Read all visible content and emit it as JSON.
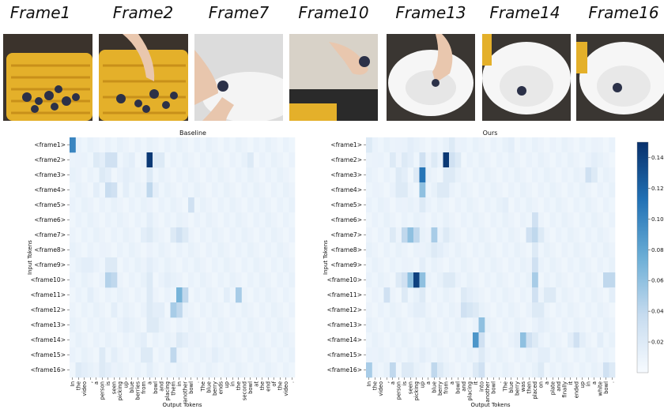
{
  "frames": [
    {
      "label": "Frame1"
    },
    {
      "label": "Frame2"
    },
    {
      "label": "Frame7"
    },
    {
      "label": "Frame10"
    },
    {
      "label": "Frame13"
    },
    {
      "label": "Frame14"
    },
    {
      "label": "Frame16"
    }
  ],
  "chart_data": [
    {
      "type": "heatmap",
      "title": "Baseline",
      "xlabel": "Output Tokens",
      "ylabel": "Input Tokens",
      "rows": [
        "<frame1>",
        "<frame2>",
        "<frame3>",
        "<frame4>",
        "<frame5>",
        "<frame6>",
        "<frame7>",
        "<frame8>",
        "<frame9>",
        "<frame10>",
        "<frame11>",
        "<frame12>",
        "<frame13>",
        "<frame14>",
        "<frame15>",
        "<frame16>"
      ],
      "cols": [
        "In",
        "the",
        "video",
        ",",
        "a",
        "person",
        "is",
        "seen",
        "picking",
        "up",
        "blue",
        "berries",
        "from",
        "a",
        "bowl",
        "and",
        "placing",
        "them",
        "in",
        "another",
        "bowl",
        ".",
        "The",
        "blue",
        "berry",
        "ends",
        "up",
        "in",
        "the",
        "second",
        "bowl",
        "at",
        "the",
        "end",
        "of",
        "the",
        "video",
        "."
      ],
      "cells": [
        [
          0,
          0,
          0.1
        ],
        [
          1,
          1,
          0.01
        ],
        [
          5,
          1,
          0.015
        ],
        [
          7,
          1,
          0.02
        ],
        [
          13,
          1,
          0.04
        ],
        [
          14,
          1,
          0.03
        ],
        [
          15,
          1,
          0.02
        ],
        [
          4,
          1,
          0.02
        ],
        [
          6,
          1,
          0.03
        ],
        [
          7,
          1,
          0.03
        ],
        [
          10,
          1,
          0.015
        ],
        [
          13,
          1,
          0.145
        ],
        [
          14,
          1,
          0.02
        ],
        [
          30,
          1,
          0.02
        ],
        [
          1,
          2,
          0.01
        ],
        [
          5,
          2,
          0.02
        ],
        [
          6,
          2,
          0.015
        ],
        [
          9,
          2,
          0.015
        ],
        [
          13,
          2,
          0.02
        ],
        [
          4,
          3,
          0.015
        ],
        [
          6,
          3,
          0.035
        ],
        [
          7,
          3,
          0.03
        ],
        [
          9,
          3,
          0.015
        ],
        [
          13,
          3,
          0.04
        ],
        [
          14,
          3,
          0.015
        ],
        [
          3,
          4,
          0.01
        ],
        [
          20,
          4,
          0.03
        ],
        [
          13,
          4,
          0.01
        ],
        [
          13,
          5,
          0.015
        ],
        [
          19,
          5,
          0.01
        ],
        [
          12,
          6,
          0.015
        ],
        [
          13,
          6,
          0.02
        ],
        [
          17,
          6,
          0.02
        ],
        [
          18,
          6,
          0.03
        ],
        [
          19,
          6,
          0.02
        ],
        [
          5,
          7,
          0.01
        ],
        [
          13,
          7,
          0.01
        ],
        [
          2,
          8,
          0.015
        ],
        [
          3,
          8,
          0.015
        ],
        [
          6,
          8,
          0.02
        ],
        [
          7,
          8,
          0.02
        ],
        [
          13,
          8,
          0.015
        ],
        [
          6,
          9,
          0.045
        ],
        [
          7,
          9,
          0.04
        ],
        [
          13,
          9,
          0.02
        ],
        [
          16,
          9,
          0.015
        ],
        [
          18,
          9,
          0.01
        ],
        [
          3,
          10,
          0.015
        ],
        [
          13,
          10,
          0.02
        ],
        [
          18,
          10,
          0.07
        ],
        [
          19,
          10,
          0.04
        ],
        [
          26,
          10,
          0.015
        ],
        [
          28,
          10,
          0.05
        ],
        [
          7,
          11,
          0.015
        ],
        [
          13,
          11,
          0.02
        ],
        [
          14,
          11,
          0.015
        ],
        [
          15,
          11,
          0.015
        ],
        [
          18,
          11,
          0.04
        ],
        [
          17,
          11,
          0.05
        ],
        [
          13,
          12,
          0.02
        ],
        [
          14,
          12,
          0.02
        ],
        [
          9,
          12,
          0.015
        ],
        [
          12,
          13,
          0.015
        ],
        [
          18,
          13,
          0.02
        ],
        [
          19,
          13,
          0.015
        ],
        [
          20,
          13,
          0.01
        ],
        [
          22,
          13,
          0.01
        ],
        [
          5,
          14,
          0.02
        ],
        [
          7,
          14,
          0.015
        ],
        [
          13,
          14,
          0.02
        ],
        [
          17,
          14,
          0.04
        ],
        [
          12,
          14,
          0.02
        ],
        [
          24,
          14,
          0.015
        ],
        [
          1,
          15,
          0.02
        ],
        [
          2,
          15,
          0.015
        ],
        [
          5,
          15,
          0.02
        ],
        [
          6,
          15,
          0.015
        ],
        [
          7,
          15,
          0.01
        ],
        [
          13,
          15,
          0.015
        ],
        [
          21,
          15,
          0.01
        ]
      ]
    },
    {
      "type": "heatmap",
      "title": "Ours",
      "xlabel": "Output Tokens",
      "ylabel": "Input Tokens",
      "rows": [
        "<frame1>",
        "<frame2>",
        "<frame3>",
        "<frame4>",
        "<frame5>",
        "<frame6>",
        "<frame7>",
        "<frame8>",
        "<frame9>",
        "<frame10>",
        "<frame11>",
        "<frame12>",
        "<frame13>",
        "<frame14>",
        "<frame15>",
        "<frame16>"
      ],
      "cols": [
        "In",
        "the",
        "video",
        ",",
        "a",
        "person",
        "is",
        "seen",
        "picking",
        "up",
        "a",
        "blue",
        "berry",
        "from",
        "a",
        "bowl",
        "and",
        "placing",
        "it",
        "into",
        "another",
        "bowl",
        ".",
        "The",
        "blue",
        "berry",
        "was",
        "then",
        "placed",
        "on",
        "a",
        "plate",
        "and",
        "finally",
        "it",
        "ended",
        "up",
        "in",
        "a",
        "white",
        "bowl",
        "."
      ],
      "cells": [
        [
          0,
          0,
          0.02
        ],
        [
          5,
          0,
          0.01
        ],
        [
          7,
          0,
          0.015
        ],
        [
          11,
          0,
          0.01
        ],
        [
          14,
          0,
          0.02
        ],
        [
          15,
          0,
          0.01
        ],
        [
          24,
          0,
          0.015
        ],
        [
          31,
          0,
          0.01
        ],
        [
          38,
          0,
          0.01
        ],
        [
          1,
          1,
          0.01
        ],
        [
          4,
          1,
          0.02
        ],
        [
          6,
          1,
          0.02
        ],
        [
          7,
          1,
          0.015
        ],
        [
          9,
          1,
          0.03
        ],
        [
          11,
          1,
          0.02
        ],
        [
          13,
          1,
          0.145
        ],
        [
          14,
          1,
          0.03
        ],
        [
          15,
          1,
          0.02
        ],
        [
          38,
          1,
          0.015
        ],
        [
          5,
          2,
          0.02
        ],
        [
          6,
          2,
          0.015
        ],
        [
          8,
          2,
          0.02
        ],
        [
          9,
          2,
          0.11
        ],
        [
          13,
          2,
          0.02
        ],
        [
          14,
          2,
          0.02
        ],
        [
          37,
          2,
          0.03
        ],
        [
          38,
          2,
          0.02
        ],
        [
          1,
          3,
          0.01
        ],
        [
          5,
          3,
          0.02
        ],
        [
          6,
          3,
          0.02
        ],
        [
          9,
          3,
          0.06
        ],
        [
          12,
          3,
          0.02
        ],
        [
          13,
          3,
          0.02
        ],
        [
          3,
          4,
          0.01
        ],
        [
          6,
          4,
          0.01
        ],
        [
          9,
          4,
          0.02
        ],
        [
          23,
          4,
          0.015
        ],
        [
          9,
          5,
          0.01
        ],
        [
          28,
          5,
          0.03
        ],
        [
          4,
          6,
          0.02
        ],
        [
          6,
          6,
          0.04
        ],
        [
          7,
          6,
          0.06
        ],
        [
          8,
          6,
          0.04
        ],
        [
          11,
          6,
          0.05
        ],
        [
          13,
          6,
          0.02
        ],
        [
          27,
          6,
          0.03
        ],
        [
          28,
          6,
          0.04
        ],
        [
          29,
          6,
          0.02
        ],
        [
          9,
          7,
          0.01
        ],
        [
          11,
          7,
          0.02
        ],
        [
          12,
          7,
          0.015
        ],
        [
          28,
          7,
          0.02
        ],
        [
          6,
          8,
          0.01
        ],
        [
          9,
          8,
          0.015
        ],
        [
          28,
          8,
          0.03
        ],
        [
          5,
          9,
          0.02
        ],
        [
          6,
          9,
          0.03
        ],
        [
          7,
          9,
          0.06
        ],
        [
          8,
          9,
          0.14
        ],
        [
          9,
          9,
          0.06
        ],
        [
          13,
          9,
          0.02
        ],
        [
          14,
          9,
          0.02
        ],
        [
          28,
          9,
          0.05
        ],
        [
          41,
          9,
          0.04
        ],
        [
          40,
          9,
          0.04
        ],
        [
          1,
          10,
          0.01
        ],
        [
          3,
          10,
          0.03
        ],
        [
          6,
          10,
          0.02
        ],
        [
          9,
          10,
          0.02
        ],
        [
          16,
          10,
          0.02
        ],
        [
          17,
          10,
          0.015
        ],
        [
          28,
          10,
          0.03
        ],
        [
          30,
          10,
          0.02
        ],
        [
          31,
          10,
          0.02
        ],
        [
          41,
          10,
          0.015
        ],
        [
          8,
          11,
          0.015
        ],
        [
          9,
          11,
          0.015
        ],
        [
          16,
          11,
          0.03
        ],
        [
          17,
          11,
          0.025
        ],
        [
          18,
          11,
          0.02
        ],
        [
          28,
          11,
          0.02
        ],
        [
          29,
          11,
          0.02
        ],
        [
          8,
          12,
          0.01
        ],
        [
          19,
          12,
          0.06
        ],
        [
          29,
          12,
          0.015
        ],
        [
          18,
          13,
          0.09
        ],
        [
          19,
          13,
          0.03
        ],
        [
          25,
          13,
          0.015
        ],
        [
          26,
          13,
          0.06
        ],
        [
          27,
          13,
          0.03
        ],
        [
          28,
          13,
          0.02
        ],
        [
          34,
          13,
          0.015
        ],
        [
          35,
          13,
          0.03
        ],
        [
          36,
          13,
          0.015
        ],
        [
          39,
          13,
          0.015
        ],
        [
          1,
          14,
          0.01
        ],
        [
          9,
          14,
          0.015
        ],
        [
          19,
          14,
          0.02
        ],
        [
          29,
          14,
          0.015
        ],
        [
          30,
          14,
          0.015
        ],
        [
          38,
          14,
          0.01
        ],
        [
          0,
          15,
          0.05
        ],
        [
          4,
          15,
          0.04
        ],
        [
          6,
          15,
          0.02
        ],
        [
          7,
          15,
          0.02
        ],
        [
          11,
          15,
          0.04
        ],
        [
          12,
          15,
          0.02
        ],
        [
          18,
          15,
          0.02
        ],
        [
          19,
          15,
          0.03
        ],
        [
          29,
          15,
          0.02
        ],
        [
          40,
          15,
          0.03
        ],
        [
          41,
          15,
          0.02
        ]
      ]
    }
  ],
  "colorbar": {
    "ticks": [
      "0.02",
      "0.04",
      "0.06",
      "0.08",
      "0.10",
      "0.12",
      "0.14"
    ],
    "min": 0,
    "max": 0.15
  },
  "colors": {
    "low": "#f7fbff",
    "high": "#08306b"
  }
}
